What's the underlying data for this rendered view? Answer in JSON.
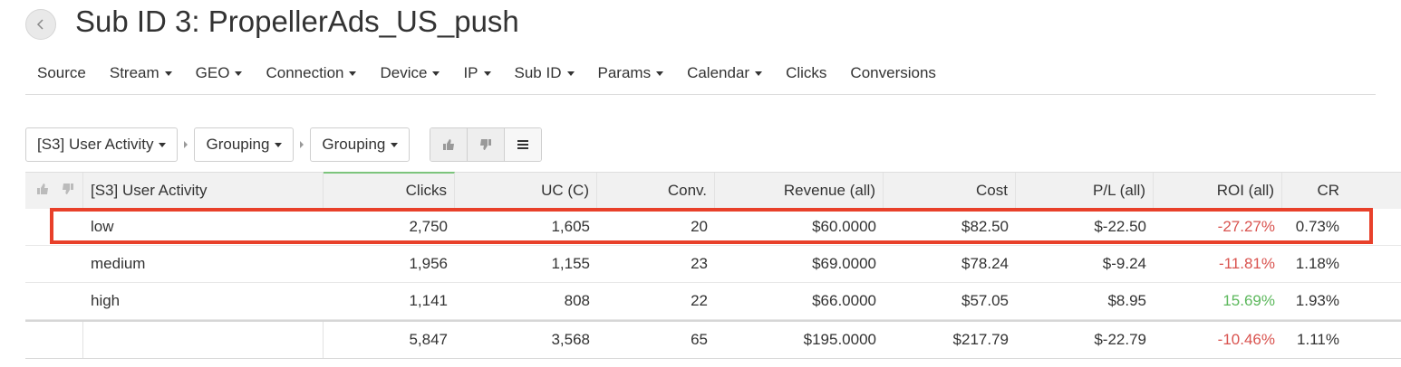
{
  "header": {
    "title": "Sub ID 3: PropellerAds_US_push"
  },
  "nav": [
    {
      "label": "Source",
      "dropdown": false
    },
    {
      "label": "Stream",
      "dropdown": true
    },
    {
      "label": "GEO",
      "dropdown": true
    },
    {
      "label": "Connection",
      "dropdown": true
    },
    {
      "label": "Device",
      "dropdown": true
    },
    {
      "label": "IP",
      "dropdown": true
    },
    {
      "label": "Sub ID",
      "dropdown": true
    },
    {
      "label": "Params",
      "dropdown": true
    },
    {
      "label": "Calendar",
      "dropdown": true
    },
    {
      "label": "Clicks",
      "dropdown": false
    },
    {
      "label": "Conversions",
      "dropdown": false
    }
  ],
  "filters": {
    "activity": "[S3] User Activity",
    "grouping1": "Grouping",
    "grouping2": "Grouping",
    "buttons": [
      "thumbs-up-icon",
      "thumbs-down-icon",
      "list-icon"
    ]
  },
  "table": {
    "headers": {
      "name": "[S3] User Activity",
      "clicks": "Clicks",
      "uc": "UC (C)",
      "conv": "Conv.",
      "revenue": "Revenue (all)",
      "cost": "Cost",
      "pl": "P/L (all)",
      "roi": "ROI (all)",
      "cr": "CR"
    },
    "rows": [
      {
        "name": "low",
        "clicks": "2,750",
        "uc": "1,605",
        "conv": "20",
        "revenue": "$60.0000",
        "cost": "$82.50",
        "pl": "$-22.50",
        "roi": "-27.27%",
        "roi_sign": "neg",
        "cr": "0.73%"
      },
      {
        "name": "medium",
        "clicks": "1,956",
        "uc": "1,155",
        "conv": "23",
        "revenue": "$69.0000",
        "cost": "$78.24",
        "pl": "$-9.24",
        "roi": "-11.81%",
        "roi_sign": "neg",
        "cr": "1.18%"
      },
      {
        "name": "high",
        "clicks": "1,141",
        "uc": "808",
        "conv": "22",
        "revenue": "$66.0000",
        "cost": "$57.05",
        "pl": "$8.95",
        "roi": "15.69%",
        "roi_sign": "pos",
        "cr": "1.93%"
      }
    ],
    "total": {
      "name": "",
      "clicks": "5,847",
      "uc": "3,568",
      "conv": "65",
      "revenue": "$195.0000",
      "cost": "$217.79",
      "pl": "$-22.79",
      "roi": "-10.46%",
      "roi_sign": "neg",
      "cr": "1.11%"
    }
  },
  "colors": {
    "negative": "#d9534f",
    "positive": "#5cb85c",
    "highlight": "#e8402a",
    "sort_accent": "#7cc47c"
  }
}
